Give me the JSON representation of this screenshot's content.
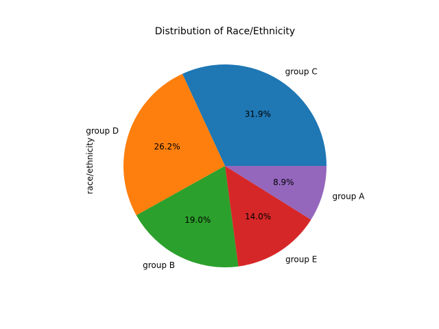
{
  "chart_data": {
    "type": "pie",
    "title": "Distribution of Race/Ethnicity",
    "ylabel": "race/ethnicity",
    "categories": [
      "group C",
      "group D",
      "group B",
      "group E",
      "group A"
    ],
    "values": [
      31.9,
      26.2,
      19.0,
      14.0,
      8.9
    ],
    "value_labels": [
      "31.9%",
      "26.2%",
      "19.0%",
      "14.0%",
      "8.9%"
    ],
    "colors": [
      "#1f77b4",
      "#ff7f0e",
      "#2ca02c",
      "#d62728",
      "#9467bd"
    ],
    "start_angle_deg": 0,
    "direction": "counterclockwise",
    "legend": "none"
  }
}
